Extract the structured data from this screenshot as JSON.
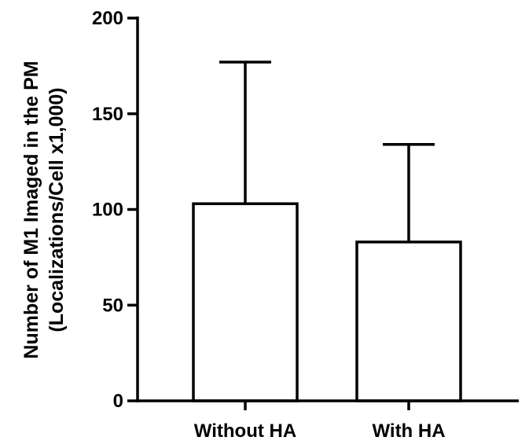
{
  "chart_data": {
    "type": "bar",
    "categories": [
      "Without HA",
      "With HA"
    ],
    "series": [
      {
        "values": [
          103,
          83
        ],
        "error_upper": [
          177,
          134
        ]
      }
    ],
    "ylabel_line1": "Number of M1 Imaged in the PM",
    "ylabel_line2": "(Localizations/Cell x1,000)",
    "ylim": [
      0,
      200
    ],
    "yticks": [
      0,
      50,
      100,
      150,
      200
    ],
    "grid": false,
    "bar_fill": "#ffffff",
    "stroke_color": "#000000"
  }
}
